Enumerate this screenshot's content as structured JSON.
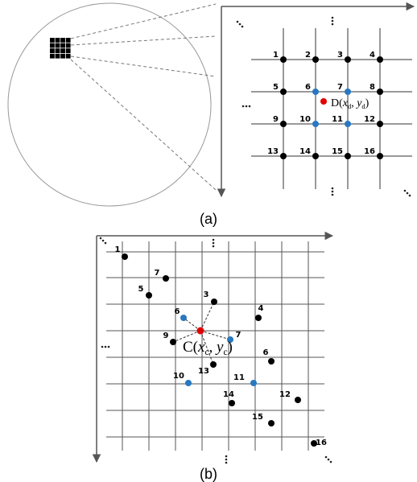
{
  "panel_a": {
    "node_labels": [
      "1",
      "2",
      "3",
      "4",
      "5",
      "6",
      "7",
      "8",
      "9",
      "10",
      "11",
      "12",
      "13",
      "14",
      "15",
      "16"
    ],
    "point_label": [
      "D(",
      "x",
      "d",
      ", ",
      "y",
      "d",
      ")"
    ],
    "caption": "(a)"
  },
  "panel_b": {
    "point_labels": [
      "1",
      "7",
      "5",
      "3",
      "6",
      "4",
      "9",
      "7",
      "6",
      "13",
      "10",
      "11",
      "14",
      "12",
      "15",
      "16"
    ],
    "center_label": [
      "C(",
      "x",
      "c",
      ", ",
      "y",
      "c",
      ")"
    ],
    "caption": "(b)"
  }
}
